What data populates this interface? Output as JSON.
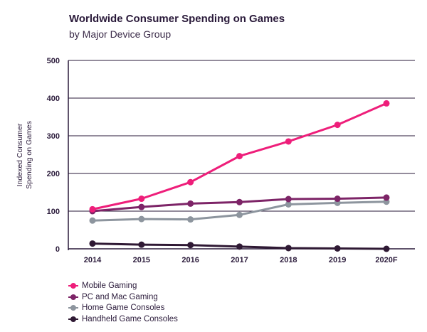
{
  "chart_data": {
    "type": "line",
    "title": "Worldwide Consumer Spending on Games",
    "subtitle": "by Major Device Group",
    "xlabel": "",
    "ylabel_lines": [
      "Indexed Consumer",
      "Spending on Games"
    ],
    "categories": [
      "2014",
      "2015",
      "2016",
      "2017",
      "2018",
      "2019",
      "2020F"
    ],
    "yticks": [
      0,
      100,
      200,
      300,
      400,
      500
    ],
    "ylim": [
      0,
      500
    ],
    "grid": true,
    "legend_position": "bottom-left",
    "series": [
      {
        "name": "Mobile Gaming",
        "color": "#ee1e7a",
        "values": [
          105,
          133,
          177,
          246,
          285,
          329,
          386
        ]
      },
      {
        "name": "PC and Mac Gaming",
        "color": "#7d2467",
        "values": [
          100,
          111,
          120,
          124,
          132,
          133,
          136
        ]
      },
      {
        "name": "Home Game Consoles",
        "color": "#8d959e",
        "values": [
          75,
          79,
          78,
          90,
          118,
          122,
          125
        ]
      },
      {
        "name": "Handheld Game Consoles",
        "color": "#2f1934",
        "values": [
          14,
          11,
          10,
          6,
          2,
          1,
          0
        ]
      }
    ]
  }
}
